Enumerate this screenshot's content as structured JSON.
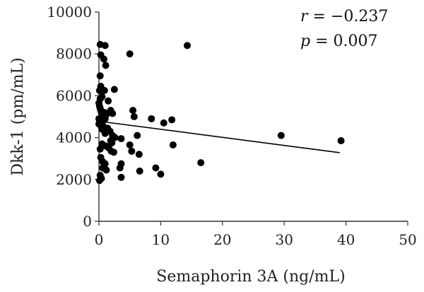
{
  "chart_data": {
    "type": "scatter",
    "title": "",
    "xlabel": "Semaphorin 3A (ng/mL)",
    "ylabel": "Dkk-1 (pm/mL)",
    "xlim": [
      0,
      50
    ],
    "ylim": [
      0,
      10000
    ],
    "x_ticks": [
      0,
      10,
      20,
      30,
      40,
      50
    ],
    "x_tick_labels": [
      "0",
      "10",
      "20",
      "30",
      "40",
      "50"
    ],
    "y_ticks": [
      0,
      2000,
      4000,
      6000,
      8000,
      10000
    ],
    "y_tick_labels": [
      "0",
      "2000",
      "4000",
      "6000",
      "8000",
      "10000"
    ],
    "grid": false,
    "point_color": "#000000",
    "annotations": [
      {
        "name": "correlation",
        "symbol": "r",
        "text": " = −0.237"
      },
      {
        "name": "p-value",
        "symbol": "p",
        "text": " = 0.007"
      }
    ],
    "trendline": {
      "x": [
        0,
        39
      ],
      "y": [
        4780,
        3280
      ]
    },
    "series": [
      {
        "points": [
          [
            0.2,
            8450
          ],
          [
            1.0,
            8400
          ],
          [
            5.0,
            8000
          ],
          [
            14.3,
            8400
          ],
          [
            0.3,
            7950
          ],
          [
            0.8,
            7750
          ],
          [
            1.1,
            7450
          ],
          [
            0.2,
            6950
          ],
          [
            0.3,
            6450
          ],
          [
            0.1,
            6250
          ],
          [
            0.9,
            6250
          ],
          [
            2.5,
            6300
          ],
          [
            0.2,
            5850
          ],
          [
            0.5,
            5950
          ],
          [
            1.5,
            5750
          ],
          [
            1.9,
            5300
          ],
          [
            2.2,
            5150
          ],
          [
            5.5,
            5300
          ],
          [
            5.7,
            5000
          ],
          [
            8.5,
            4900
          ],
          [
            10.5,
            4700
          ],
          [
            11.8,
            4850
          ],
          [
            0.0,
            5650
          ],
          [
            0.1,
            5500
          ],
          [
            0.2,
            5400
          ],
          [
            0.3,
            5300
          ],
          [
            0.4,
            5200
          ],
          [
            0.5,
            5100
          ],
          [
            0.6,
            5000
          ],
          [
            0.7,
            4950
          ],
          [
            0.8,
            5050
          ],
          [
            0.9,
            5200
          ],
          [
            1.0,
            4900
          ],
          [
            1.2,
            5100
          ],
          [
            0.0,
            4900
          ],
          [
            0.1,
            4800
          ],
          [
            0.2,
            4700
          ],
          [
            0.3,
            4600
          ],
          [
            0.4,
            4500
          ],
          [
            0.5,
            4400
          ],
          [
            0.0,
            4650
          ],
          [
            0.6,
            4600
          ],
          [
            0.7,
            4500
          ],
          [
            0.8,
            4350
          ],
          [
            1.0,
            4200
          ],
          [
            1.4,
            4450
          ],
          [
            1.8,
            4300
          ],
          [
            2.2,
            4100
          ],
          [
            2.6,
            4000
          ],
          [
            1.9,
            3850
          ],
          [
            2.1,
            3750
          ],
          [
            0.2,
            3450
          ],
          [
            0.5,
            3700
          ],
          [
            1.1,
            3600
          ],
          [
            1.6,
            3500
          ],
          [
            2.0,
            3350
          ],
          [
            2.4,
            3300
          ],
          [
            3.6,
            3950
          ],
          [
            5.0,
            3650
          ],
          [
            6.2,
            4100
          ],
          [
            12.0,
            3650
          ],
          [
            29.5,
            4100
          ],
          [
            39.2,
            3850
          ],
          [
            5.3,
            3350
          ],
          [
            6.5,
            3200
          ],
          [
            0.3,
            3050
          ],
          [
            0.6,
            2850
          ],
          [
            1.0,
            2750
          ],
          [
            0.6,
            2550
          ],
          [
            1.2,
            2450
          ],
          [
            3.6,
            2750
          ],
          [
            3.4,
            2550
          ],
          [
            6.6,
            2400
          ],
          [
            9.2,
            2550
          ],
          [
            10.0,
            2250
          ],
          [
            16.5,
            2800
          ],
          [
            0.2,
            2200
          ],
          [
            0.4,
            2050
          ],
          [
            0.1,
            1950
          ],
          [
            3.6,
            2100
          ]
        ]
      }
    ]
  }
}
